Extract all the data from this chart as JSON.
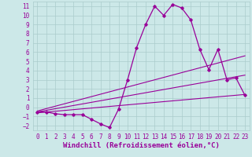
{
  "background_color": "#cce8e8",
  "grid_color": "#aacccc",
  "line_color": "#990099",
  "marker_color": "#990099",
  "xlabel": "Windchill (Refroidissement éolien,°C)",
  "xlabel_fontsize": 6.5,
  "xlim": [
    -0.5,
    23.5
  ],
  "ylim": [
    -2.5,
    11.5
  ],
  "xticks": [
    0,
    1,
    2,
    3,
    4,
    5,
    6,
    7,
    8,
    9,
    10,
    11,
    12,
    13,
    14,
    15,
    16,
    17,
    18,
    19,
    20,
    21,
    22,
    23
  ],
  "yticks": [
    -2,
    -1,
    0,
    1,
    2,
    3,
    4,
    5,
    6,
    7,
    8,
    9,
    10,
    11
  ],
  "tick_fontsize": 5.5,
  "main_line_x": [
    0,
    1,
    2,
    3,
    4,
    5,
    6,
    7,
    8,
    9,
    10,
    11,
    12,
    13,
    14,
    15,
    16,
    17,
    18,
    19,
    20,
    21,
    22,
    23
  ],
  "main_line_y": [
    -0.5,
    -0.5,
    -0.7,
    -0.8,
    -0.8,
    -0.8,
    -1.3,
    -1.8,
    -2.2,
    -0.2,
    3.0,
    6.5,
    9.0,
    11.0,
    10.0,
    11.2,
    10.8,
    9.5,
    6.3,
    4.1,
    6.3,
    3.0,
    3.2,
    1.3
  ],
  "reg_line1_x": [
    0,
    23
  ],
  "reg_line1_y": [
    -0.6,
    1.4
  ],
  "reg_line2_x": [
    0,
    23
  ],
  "reg_line2_y": [
    -0.5,
    3.5
  ],
  "reg_line3_x": [
    0,
    23
  ],
  "reg_line3_y": [
    -0.4,
    5.6
  ]
}
